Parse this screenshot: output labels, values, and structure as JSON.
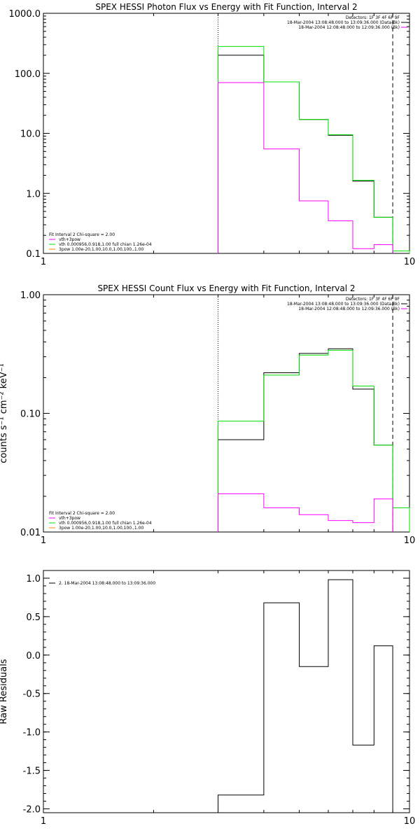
{
  "chart_data": [
    {
      "type": "line",
      "title": "SPEX HESSI Photon Flux vs Energy with Fit Function, Interval 2",
      "xscale": "log",
      "yscale": "log",
      "xlim": [
        1,
        10
      ],
      "ylim": [
        0.1,
        1000
      ],
      "x_tick_labels": [
        "1",
        "10"
      ],
      "y_ticks": [
        0.1,
        1,
        10,
        100,
        1000
      ],
      "y_tick_labels": [
        "0.1",
        "1.0",
        "10.0",
        "100.0",
        "1000.0"
      ],
      "xlabel": "",
      "ylabel": "",
      "vlines": [
        {
          "x": 3.0,
          "style": "dotted"
        },
        {
          "x": 9.0,
          "style": "dashed"
        }
      ],
      "header_lines": [
        {
          "text": "Detectors: 1F 3F 4F 6F 9F",
          "color": null
        },
        {
          "text": "18-Mar-2004 13:08:48.000 to 13:09:36.000 (Data-Bk)",
          "color": "#000000"
        },
        {
          "text": "18-Mar-2004 12:08:48.000 to 12:09:36.000 (Bk)",
          "color": "#ff00ff"
        }
      ],
      "legend": {
        "placement": "bottom-left",
        "title": "Fit Interval 2   Chi-square = 2.00",
        "entries": [
          {
            "text": "vth+3pow",
            "color": "#ff00ff"
          },
          {
            "text": "vth 0.000956,0.918,1.00  full chian 1.26e-04",
            "color": "#00e000"
          },
          {
            "text": "3pow 1.00e-20,1.00,10.0,1.00,100.,1.00",
            "color": "#ff8000"
          }
        ]
      },
      "series": [
        {
          "color": "#000000",
          "edges": [
            3,
            4,
            5,
            6,
            7,
            8,
            9
          ],
          "values": [
            200,
            72,
            17,
            9.3,
            1.6,
            0.4
          ]
        },
        {
          "color": "#00e000",
          "edges": [
            3,
            4,
            5,
            6,
            7,
            8,
            9,
            10
          ],
          "values": [
            280,
            72,
            17,
            9.5,
            1.65,
            0.4,
            0.11
          ]
        },
        {
          "color": "#ff00ff",
          "edges": [
            3,
            4,
            5,
            6,
            7,
            8,
            9
          ],
          "values": [
            70,
            5.5,
            0.75,
            0.35,
            0.12,
            0.14
          ]
        }
      ]
    },
    {
      "type": "line",
      "title": "SPEX HESSI Count Flux vs Energy with Fit Function, Interval 2",
      "xscale": "log",
      "yscale": "log",
      "xlim": [
        1,
        10
      ],
      "ylim": [
        0.01,
        1
      ],
      "x_tick_labels": [
        "1",
        "10"
      ],
      "y_ticks": [
        0.01,
        0.1,
        1
      ],
      "y_tick_labels": [
        "0.01",
        "0.10",
        "1.00"
      ],
      "xlabel": "",
      "ylabel": "counts s⁻¹ cm⁻² keV⁻¹",
      "vlines": [
        {
          "x": 3.0,
          "style": "dotted"
        },
        {
          "x": 9.0,
          "style": "dashed"
        }
      ],
      "header_lines": [
        {
          "text": "Detectors: 1F 3F 4F 6F 9F",
          "color": null
        },
        {
          "text": "18-Mar-2004 13:08:48.000 to 13:09:36.000 (Data-Bk)",
          "color": "#000000"
        },
        {
          "text": "18-Mar-2004 12:08:48.000 to 12:09:36.000 (Bk)",
          "color": "#ff00ff"
        }
      ],
      "legend": {
        "placement": "bottom-left",
        "title": "Fit Interval 2   Chi-square = 2.00",
        "entries": [
          {
            "text": "vth+3pow",
            "color": "#ff00ff"
          },
          {
            "text": "vth 0.000956,0.918,1.00  full chian 1.26e-04",
            "color": "#00e000"
          },
          {
            "text": "3pow 1.00e-20,1.00,10.0,1.00,100.,1.00",
            "color": "#ff8000"
          }
        ]
      },
      "series": [
        {
          "color": "#000000",
          "edges": [
            3,
            4,
            5,
            6,
            7,
            8,
            9
          ],
          "values": [
            0.06,
            0.22,
            0.32,
            0.35,
            0.16,
            0.054
          ]
        },
        {
          "color": "#00e000",
          "edges": [
            3,
            4,
            5,
            6,
            7,
            8,
            9,
            10
          ],
          "values": [
            0.086,
            0.21,
            0.31,
            0.34,
            0.17,
            0.054,
            0.016
          ]
        },
        {
          "color": "#ff00ff",
          "edges": [
            3,
            4,
            5,
            6,
            7,
            8,
            9
          ],
          "values": [
            0.021,
            0.016,
            0.014,
            0.0125,
            0.012,
            0.019
          ]
        }
      ]
    },
    {
      "type": "line",
      "title": "",
      "xscale": "log",
      "yscale": "linear",
      "xlim": [
        1,
        10
      ],
      "ylim": [
        -2.05,
        1.1
      ],
      "x_tick_labels": [
        "1",
        "10"
      ],
      "y_ticks": [
        -2.0,
        -1.5,
        -1.0,
        -0.5,
        0.0,
        0.5,
        1.0
      ],
      "y_tick_labels": [
        "-2.0",
        "-1.5",
        "-1.0",
        "-0.5",
        "0.0",
        "0.5",
        "1.0"
      ],
      "xlabel": "",
      "ylabel": "Raw Residuals",
      "vlines": [],
      "header_lines": [],
      "legend": {
        "placement": "top-left",
        "title": "",
        "entries": [
          {
            "text": "2. 18-Mar-2004 13:08:48.000 to 13:09:36.000",
            "color": "#000000"
          }
        ]
      },
      "series": [
        {
          "color": "#000000",
          "edges": [
            3,
            4,
            5,
            6,
            7,
            8,
            9
          ],
          "values": [
            -1.82,
            0.68,
            -0.15,
            0.98,
            -1.17,
            0.12
          ]
        }
      ]
    }
  ]
}
